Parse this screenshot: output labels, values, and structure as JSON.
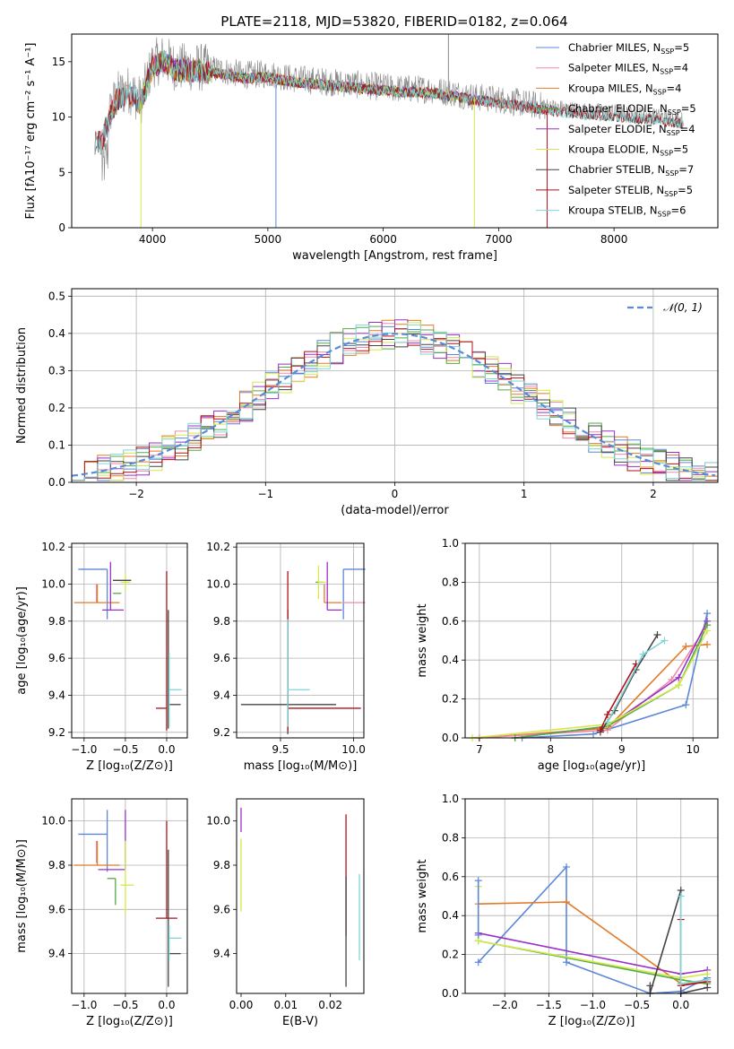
{
  "figure": {
    "title": "PLATE=2118, MJD=53820, FIBERID=0182, z=0.064"
  },
  "palette": {
    "Chabrier MILES": "#5b87d9",
    "Salpeter MILES": "#f08aa8",
    "Kroupa MILES": "#e07b28",
    "Chabrier ELODIE": "#55aa44",
    "Salpeter ELODIE": "#9b30c8",
    "Kroupa ELODIE": "#d4e84a",
    "Chabrier STELIB": "#444444",
    "Salpeter STELIB": "#b0111b",
    "Kroupa STELIB": "#7fd6d6",
    "normal": "#5b8bd8",
    "grid": "#b0b0b0"
  },
  "chart_data": [
    {
      "id": "spectrum",
      "type": "line",
      "xlabel": "wavelength [Angstrom, rest frame]",
      "ylabel": "Flux [fλ10⁻¹⁷ erg cm⁻² s⁻¹ A⁻¹]",
      "xlim": [
        3300,
        8900
      ],
      "ylim": [
        0,
        17.5
      ],
      "xticks": [
        4000,
        5000,
        6000,
        7000,
        8000
      ],
      "yticks": [
        0,
        5,
        10,
        15
      ],
      "grid": false,
      "legend_position": "top-right",
      "legend": [
        {
          "label": "Chabrier MILES, N",
          "sub": "SSP",
          "tail": "=5",
          "key": "Chabrier MILES"
        },
        {
          "label": "Salpeter MILES, N",
          "sub": "SSP",
          "tail": "=4",
          "key": "Salpeter MILES"
        },
        {
          "label": "Kroupa MILES, N",
          "sub": "SSP",
          "tail": "=4",
          "key": "Kroupa MILES"
        },
        {
          "label": "Chabrier ELODIE, N",
          "sub": "SSP",
          "tail": "=5",
          "key": "Chabrier ELODIE"
        },
        {
          "label": "Salpeter ELODIE, N",
          "sub": "SSP",
          "tail": "=4",
          "key": "Salpeter ELODIE"
        },
        {
          "label": "Kroupa ELODIE, N",
          "sub": "SSP",
          "tail": "=5",
          "key": "Kroupa ELODIE"
        },
        {
          "label": "Chabrier STELIB, N",
          "sub": "SSP",
          "tail": "=7",
          "key": "Chabrier STELIB"
        },
        {
          "label": "Salpeter STELIB, N",
          "sub": "SSP",
          "tail": "=5",
          "key": "Salpeter STELIB"
        },
        {
          "label": "Kroupa STELIB, N",
          "sub": "SSP",
          "tail": "=6",
          "key": "Kroupa STELIB"
        }
      ],
      "data_envelope": {
        "x": [
          3560,
          3650,
          3700,
          3800,
          3900,
          4000,
          4100,
          4200,
          4400,
          4600,
          4800,
          5000,
          5200,
          5500,
          5800,
          6100,
          6400,
          6600,
          6800,
          7000,
          7300,
          7600,
          7800,
          8000,
          8300,
          8500,
          8600
        ],
        "y": [
          8.0,
          11.0,
          12.0,
          12.5,
          11.5,
          14.8,
          15.3,
          14.5,
          14.5,
          14.2,
          13.8,
          13.9,
          13.5,
          13.2,
          12.9,
          12.6,
          12.5,
          12.2,
          11.8,
          11.6,
          11.1,
          10.7,
          10.5,
          10.4,
          10.1,
          9.9,
          9.7
        ]
      },
      "model_spans": {
        "MILES": [
          3550,
          7400
        ],
        "ELODIE": [
          3900,
          6800
        ],
        "STELIB": [
          3500,
          8600
        ]
      },
      "model_dips": [
        {
          "key": "Kroupa ELODIE",
          "x": 3900,
          "y": 0
        },
        {
          "key": "Chabrier MILES",
          "x": 5070,
          "y": 0
        },
        {
          "key": "Kroupa ELODIE",
          "x": 6790,
          "y": 0
        },
        {
          "key": "Salpeter STELIB",
          "x": 7420,
          "y": 0
        }
      ]
    },
    {
      "id": "residuals",
      "type": "histogram",
      "xlabel": "(data-model)/error",
      "ylabel": "Normed distribution",
      "xlim": [
        -2.5,
        2.5
      ],
      "ylim": [
        0,
        0.52
      ],
      "xticks": [
        -2,
        -1,
        0,
        1,
        2
      ],
      "yticks": [
        0.0,
        0.1,
        0.2,
        0.3,
        0.4,
        0.5
      ],
      "grid": true,
      "bin_width": 0.1,
      "legend_position": "top-right",
      "legend": [
        {
          "label": "𝒩(0, 1)",
          "key": "normal",
          "dashed": true
        }
      ],
      "series_order": [
        "Chabrier MILES",
        "Salpeter MILES",
        "Kroupa MILES",
        "Chabrier ELODIE",
        "Salpeter ELODIE",
        "Kroupa ELODIE",
        "Chabrier STELIB",
        "Salpeter STELIB",
        "Kroupa STELIB"
      ]
    },
    {
      "id": "age_vs_Z",
      "type": "errorbar",
      "xlabel": "Z [log₁₀(Z/Z⊙)]",
      "ylabel": "age  [log₁₀(age/yr)]",
      "xlim": [
        -1.15,
        0.25
      ],
      "ylim": [
        9.17,
        10.22
      ],
      "xticks": [
        -1.0,
        -0.5,
        0.0
      ],
      "yticks": [
        9.2,
        9.4,
        9.6,
        9.8,
        10.0,
        10.2
      ],
      "grid": true,
      "points": [
        {
          "key": "Chabrier MILES",
          "x": -0.72,
          "xerr": [
            0.35,
            0.0
          ],
          "y": 10.08,
          "yerr": [
            0.27,
            0.0
          ]
        },
        {
          "key": "Salpeter MILES",
          "x": -0.85,
          "xerr": [
            0.0,
            0.0
          ],
          "y": 10.0,
          "yerr": [
            0.1,
            0.0
          ]
        },
        {
          "key": "Kroupa MILES",
          "x": -0.84,
          "xerr": [
            0.28,
            0.27
          ],
          "y": 9.9,
          "yerr": [
            0.0,
            0.1
          ]
        },
        {
          "key": "Chabrier ELODIE",
          "x": -0.6,
          "xerr": [
            0.05,
            0.05
          ],
          "y": 9.95,
          "yerr": [
            0.0,
            0.0
          ]
        },
        {
          "key": "Salpeter ELODIE",
          "x": -0.68,
          "xerr": [
            0.1,
            0.16
          ],
          "y": 9.86,
          "yerr": [
            0.0,
            0.26
          ]
        },
        {
          "key": "Kroupa ELODIE",
          "x": -0.5,
          "xerr": [
            0.06,
            0.06
          ],
          "y": 10.01,
          "yerr": [
            0.05,
            0.05
          ]
        },
        {
          "key": "Chabrier STELIB",
          "x": -0.57,
          "xerr": [
            0.08,
            0.14
          ],
          "y": 10.02,
          "yerr": [
            0.0,
            0.0
          ]
        },
        {
          "key": "Salpeter STELIB",
          "x": 0.0,
          "xerr": [
            0.13,
            0.0
          ],
          "y": 9.33,
          "yerr": [
            0.12,
            0.74
          ]
        },
        {
          "key": "Chabrier STELIB",
          "x": 0.02,
          "xerr": [
            0.0,
            0.15
          ],
          "y": 9.35,
          "yerr": [
            0.13,
            0.51
          ]
        },
        {
          "key": "Kroupa STELIB",
          "x": 0.03,
          "xerr": [
            0.0,
            0.15
          ],
          "y": 9.43,
          "yerr": [
            0.2,
            0.2
          ]
        }
      ]
    },
    {
      "id": "age_vs_mass",
      "type": "errorbar",
      "xlabel": "mass [log₁₀(M/M⊙)]",
      "ylabel": "",
      "xlim": [
        9.2,
        10.07
      ],
      "ylim": [
        9.17,
        10.22
      ],
      "xticks": [
        9.5,
        10.0
      ],
      "yticks": [
        9.2,
        9.4,
        9.6,
        9.8,
        10.0,
        10.2
      ],
      "grid": true,
      "points": [
        {
          "key": "Chabrier MILES",
          "x": 9.93,
          "xerr": [
            0.0,
            0.15
          ],
          "y": 10.08,
          "yerr": [
            0.27,
            0.0
          ]
        },
        {
          "key": "Salpeter MILES",
          "x": 9.93,
          "xerr": [
            0.0,
            0.15
          ],
          "y": 9.9,
          "yerr": [
            0.0,
            0.0
          ]
        },
        {
          "key": "Kroupa MILES",
          "x": 9.8,
          "xerr": [
            0.0,
            0.12
          ],
          "y": 9.9,
          "yerr": [
            0.0,
            0.1
          ]
        },
        {
          "key": "Chabrier ELODIE",
          "x": 9.74,
          "xerr": [
            0.0,
            0.05
          ],
          "y": 10.01,
          "yerr": [
            0.0,
            0.0
          ]
        },
        {
          "key": "Salpeter ELODIE",
          "x": 9.82,
          "xerr": [
            0.0,
            0.1
          ],
          "y": 9.86,
          "yerr": [
            0.0,
            0.26
          ]
        },
        {
          "key": "Kroupa ELODIE",
          "x": 9.76,
          "xerr": [
            0.0,
            0.05
          ],
          "y": 10.01,
          "yerr": [
            0.09,
            0.09
          ]
        },
        {
          "key": "Chabrier STELIB",
          "x": 9.55,
          "xerr": [
            0.32,
            0.33
          ],
          "y": 9.35,
          "yerr": [
            0.16,
            0.51
          ]
        },
        {
          "key": "Salpeter STELIB",
          "x": 9.55,
          "xerr": [
            0.0,
            0.5
          ],
          "y": 9.33,
          "yerr": [
            0.12,
            0.74
          ]
        },
        {
          "key": "Kroupa STELIB",
          "x": 9.55,
          "xerr": [
            0.0,
            0.15
          ],
          "y": 9.43,
          "yerr": [
            0.2,
            0.38
          ]
        }
      ]
    },
    {
      "id": "weight_vs_age",
      "type": "line",
      "xlabel": "age  [log₁₀(age/yr)]",
      "ylabel": "mass weight",
      "xlim": [
        6.8,
        10.35
      ],
      "ylim": [
        0,
        1
      ],
      "xticks": [
        7,
        8,
        9,
        10
      ],
      "yticks": [
        0.0,
        0.2,
        0.4,
        0.6,
        0.8,
        1.0
      ],
      "grid": true,
      "series": [
        {
          "key": "Chabrier MILES",
          "x": [
            7.6,
            8.6,
            9.9,
            10.2
          ],
          "y": [
            0.0,
            0.02,
            0.17,
            0.64
          ]
        },
        {
          "key": "Kroupa MILES",
          "x": [
            7.0,
            8.8,
            9.9,
            10.2
          ],
          "y": [
            0.0,
            0.05,
            0.47,
            0.48
          ]
        },
        {
          "key": "Salpeter MILES",
          "x": [
            7.0,
            8.8,
            9.7,
            10.2
          ],
          "y": [
            0.0,
            0.04,
            0.3,
            0.58
          ]
        },
        {
          "key": "Salpeter ELODIE",
          "x": [
            7.5,
            8.8,
            9.8,
            10.2
          ],
          "y": [
            0.0,
            0.06,
            0.31,
            0.6
          ]
        },
        {
          "key": "Chabrier ELODIE",
          "x": [
            7.5,
            8.8,
            9.8,
            10.2
          ],
          "y": [
            0.0,
            0.06,
            0.27,
            0.58
          ]
        },
        {
          "key": "Kroupa ELODIE",
          "x": [
            6.9,
            8.8,
            9.8,
            10.2
          ],
          "y": [
            0.0,
            0.07,
            0.27,
            0.55
          ]
        },
        {
          "key": "Chabrier STELIB",
          "x": [
            8.7,
            8.9,
            9.2,
            9.5
          ],
          "y": [
            0.03,
            0.14,
            0.35,
            0.53
          ]
        },
        {
          "key": "Salpeter STELIB",
          "x": [
            8.7,
            8.8,
            9.2
          ],
          "y": [
            0.04,
            0.12,
            0.38
          ]
        },
        {
          "key": "Kroupa STELIB",
          "x": [
            8.8,
            9.3,
            9.6
          ],
          "y": [
            0.08,
            0.43,
            0.5
          ]
        }
      ]
    },
    {
      "id": "mass_vs_Z",
      "type": "errorbar",
      "xlabel": "Z [log₁₀(Z/Z⊙)]",
      "ylabel": "mass [log₁₀(M/M⊙)]",
      "xlim": [
        -1.15,
        0.25
      ],
      "ylim": [
        9.22,
        10.1
      ],
      "xticks": [
        -1.0,
        -0.5,
        0.0
      ],
      "yticks": [
        9.4,
        9.6,
        9.8,
        10.0
      ],
      "grid": true,
      "points": [
        {
          "key": "Chabrier MILES",
          "x": -0.72,
          "xerr": [
            0.35,
            0.0
          ],
          "y": 9.94,
          "yerr": [
            0.17,
            0.11
          ]
        },
        {
          "key": "Salpeter MILES",
          "x": -0.85,
          "xerr": [
            0.0,
            0.0
          ],
          "y": 9.91,
          "yerr": [
            0.1,
            0.0
          ]
        },
        {
          "key": "Kroupa MILES",
          "x": -0.84,
          "xerr": [
            0.28,
            0.27
          ],
          "y": 9.8,
          "yerr": [
            0.0,
            0.11
          ]
        },
        {
          "key": "Chabrier ELODIE",
          "x": -0.62,
          "xerr": [
            0.1,
            0.0
          ],
          "y": 9.74,
          "yerr": [
            0.12,
            0.0
          ]
        },
        {
          "key": "Salpeter ELODIE",
          "x": -0.5,
          "xerr": [
            0.33,
            0.0
          ],
          "y": 9.78,
          "yerr": [
            0.0,
            0.27
          ]
        },
        {
          "key": "Kroupa ELODIE",
          "x": -0.5,
          "xerr": [
            0.06,
            0.1
          ],
          "y": 9.71,
          "yerr": [
            0.13,
            0.2
          ]
        },
        {
          "key": "Salpeter STELIB",
          "x": 0.0,
          "xerr": [
            0.13,
            0.13
          ],
          "y": 9.56,
          "yerr": [
            0.0,
            0.44
          ]
        },
        {
          "key": "Chabrier STELIB",
          "x": 0.02,
          "xerr": [
            0.0,
            0.15
          ],
          "y": 9.4,
          "yerr": [
            0.15,
            0.47
          ]
        },
        {
          "key": "Kroupa STELIB",
          "x": 0.03,
          "xerr": [
            0.0,
            0.15
          ],
          "y": 9.47,
          "yerr": [
            0.1,
            0.06
          ]
        }
      ]
    },
    {
      "id": "mass_vs_EBV",
      "type": "errorbar",
      "xlabel": "E(B-V)",
      "ylabel": "",
      "xlim": [
        -0.001,
        0.0275
      ],
      "ylim": [
        9.22,
        10.1
      ],
      "xticks": [
        0.0,
        0.01,
        0.02
      ],
      "xticklabels": [
        "0.00",
        "0.01",
        "0.02"
      ],
      "yticks": [
        9.4,
        9.6,
        9.8,
        10.0
      ],
      "grid": false,
      "points": [
        {
          "key": "Salpeter ELODIE",
          "x": 0.0,
          "xerr": [
            0,
            0
          ],
          "y": 9.95,
          "yerr": [
            0.0,
            0.11
          ]
        },
        {
          "key": "Kroupa ELODIE",
          "x": 0.0,
          "xerr": [
            0,
            0
          ],
          "y": 9.72,
          "yerr": [
            0.13,
            0.2
          ]
        },
        {
          "key": "Salpeter STELIB",
          "x": 0.0235,
          "xerr": [
            0,
            0
          ],
          "y": 9.72,
          "yerr": [
            0.24,
            0.31
          ]
        },
        {
          "key": "Chabrier STELIB",
          "x": 0.0235,
          "xerr": [
            0,
            0
          ],
          "y": 9.55,
          "yerr": [
            0.3,
            0.2
          ]
        },
        {
          "key": "Kroupa STELIB",
          "x": 0.0265,
          "xerr": [
            0,
            0
          ],
          "y": 9.57,
          "yerr": [
            0.2,
            0.19
          ]
        }
      ]
    },
    {
      "id": "weight_vs_Z",
      "type": "line",
      "xlabel": "Z [log₁₀(Z/Z⊙)]",
      "ylabel": "mass weight",
      "xlim": [
        -2.45,
        0.42
      ],
      "ylim": [
        0,
        1
      ],
      "xticks": [
        -2.0,
        -1.5,
        -1.0,
        -0.5,
        0.0
      ],
      "yticks": [
        0.0,
        0.2,
        0.4,
        0.6,
        0.8,
        1.0
      ],
      "grid": true,
      "series": [
        {
          "key": "Chabrier MILES",
          "x": [
            -2.3,
            -1.3,
            -1.3,
            -0.35,
            0.0,
            0.3
          ],
          "y": [
            0.16,
            0.65,
            0.16,
            0.0,
            0.01,
            0.08
          ]
        },
        {
          "key": "Kroupa MILES",
          "x": [
            -2.3,
            -1.3,
            0.0,
            0.3
          ],
          "y": [
            0.46,
            0.47,
            0.05,
            0.06
          ]
        },
        {
          "key": "Salpeter ELODIE",
          "x": [
            -2.3,
            0.0,
            0.3
          ],
          "y": [
            0.31,
            0.1,
            0.12
          ]
        },
        {
          "key": "Chabrier ELODIE",
          "x": [
            -2.3,
            0.0,
            0.3
          ],
          "y": [
            0.27,
            0.07,
            0.05
          ]
        },
        {
          "key": "Kroupa ELODIE",
          "x": [
            -2.3,
            -2.3,
            0.0,
            0.3
          ],
          "y": [
            0.55,
            0.27,
            0.08,
            0.1
          ]
        },
        {
          "key": "Chabrier STELIB",
          "x": [
            -0.35,
            -0.35,
            0.0,
            0.0,
            0.3
          ],
          "y": [
            0.04,
            0.0,
            0.53,
            0.0,
            0.03
          ]
        },
        {
          "key": "Salpeter STELIB",
          "x": [
            0.0,
            0.0,
            0.3
          ],
          "y": [
            0.38,
            0.04,
            0.06
          ]
        },
        {
          "key": "Kroupa STELIB",
          "x": [
            0.0,
            0.0,
            0.3
          ],
          "y": [
            0.5,
            0.05,
            0.07
          ]
        },
        {
          "key": "Chabrier MILES",
          "x": [
            -2.3,
            -2.3
          ],
          "y": [
            0.58,
            0.3
          ]
        }
      ]
    }
  ]
}
